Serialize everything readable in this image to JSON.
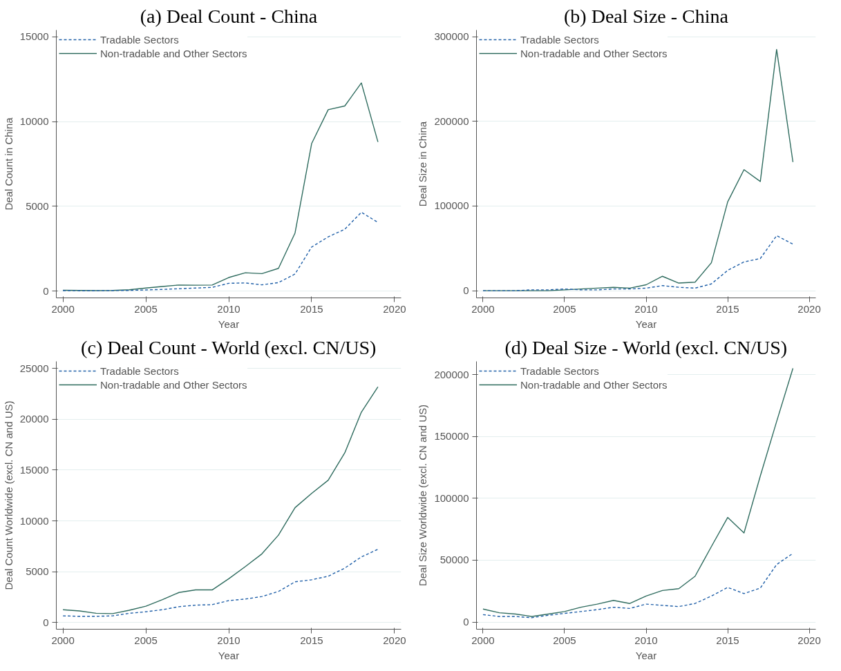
{
  "chart_data": [
    {
      "type": "line",
      "title": "(a) Deal Count - China",
      "xlabel": "Year",
      "ylabel": "Deal Count in China",
      "x": [
        2000,
        2001,
        2002,
        2003,
        2004,
        2005,
        2006,
        2007,
        2008,
        2009,
        2010,
        2011,
        2012,
        2013,
        2014,
        2015,
        2016,
        2017,
        2018,
        2019
      ],
      "xlim": [
        1999.6,
        2020.4
      ],
      "xticks": [
        2000,
        2005,
        2010,
        2015,
        2020
      ],
      "ylim": [
        -400,
        15400
      ],
      "yticks": [
        0,
        5000,
        10000,
        15000
      ],
      "grid": "y",
      "legend": "top left",
      "series": [
        {
          "name": "Tradable Sectors",
          "color": "#1f5fa8",
          "line_style": "dashed",
          "values": [
            30,
            20,
            20,
            30,
            40,
            70,
            100,
            140,
            180,
            220,
            460,
            480,
            370,
            500,
            1010,
            2600,
            3200,
            3650,
            4650,
            4050
          ]
        },
        {
          "name": "Non-tradable and Other Sectors",
          "color": "#2e6b5e",
          "line_style": "solid",
          "values": [
            50,
            40,
            30,
            40,
            80,
            180,
            270,
            360,
            350,
            360,
            800,
            1080,
            1030,
            1340,
            3430,
            8700,
            10700,
            10920,
            12280,
            8800
          ]
        }
      ]
    },
    {
      "type": "line",
      "title": "(b) Deal Size - China",
      "xlabel": "Year",
      "ylabel": "Deal Size in China",
      "x": [
        2000,
        2001,
        2002,
        2003,
        2004,
        2005,
        2006,
        2007,
        2008,
        2009,
        2010,
        2011,
        2012,
        2013,
        2014,
        2015,
        2016,
        2017,
        2018,
        2019
      ],
      "xlim": [
        1999.6,
        2020.4
      ],
      "xticks": [
        2000,
        2005,
        2010,
        2015,
        2020
      ],
      "ylim": [
        -8500,
        308000
      ],
      "yticks": [
        0,
        100000,
        200000,
        300000
      ],
      "grid": "y",
      "legend": "top left",
      "series": [
        {
          "name": "Tradable Sectors",
          "color": "#1f5fa8",
          "line_style": "dashed",
          "values": [
            0,
            0,
            0,
            1000,
            1000,
            2000,
            1000,
            1000,
            2000,
            2000,
            3000,
            6000,
            4000,
            3000,
            8000,
            24000,
            34000,
            38000,
            65000,
            55000
          ]
        },
        {
          "name": "Non-tradable and Other Sectors",
          "color": "#2e6b5e",
          "line_style": "solid",
          "values": [
            0,
            0,
            0,
            0,
            0,
            1000,
            2000,
            3000,
            4000,
            3000,
            7000,
            17000,
            9000,
            10000,
            33000,
            105000,
            143000,
            129000,
            285000,
            152000
          ]
        }
      ]
    },
    {
      "type": "line",
      "title": "(c) Deal Count - World (excl. CN/US)",
      "xlabel": "Year",
      "ylabel": "Deal Count Worldwide (excl. CN and US)",
      "x": [
        2000,
        2001,
        2002,
        2003,
        2004,
        2005,
        2006,
        2007,
        2008,
        2009,
        2010,
        2011,
        2012,
        2013,
        2014,
        2015,
        2016,
        2017,
        2018,
        2019
      ],
      "xlim": [
        1999.6,
        2020.4
      ],
      "xticks": [
        2000,
        2005,
        2010,
        2015,
        2020
      ],
      "ylim": [
        -670,
        25700
      ],
      "yticks": [
        0,
        5000,
        10000,
        15000,
        20000,
        25000
      ],
      "grid": "y",
      "legend": "top left",
      "series": [
        {
          "name": "Tradable Sectors",
          "color": "#1f5fa8",
          "line_style": "dashed",
          "values": [
            650,
            600,
            600,
            650,
            900,
            1050,
            1250,
            1550,
            1700,
            1750,
            2150,
            2300,
            2550,
            3050,
            4000,
            4200,
            4550,
            5350,
            6450,
            7200
          ]
        },
        {
          "name": "Non-tradable and Other Sectors",
          "color": "#2e6b5e",
          "line_style": "solid",
          "values": [
            1250,
            1130,
            900,
            870,
            1200,
            1600,
            2250,
            2950,
            3200,
            3200,
            4300,
            5500,
            6750,
            8600,
            11300,
            12700,
            14000,
            16700,
            20700,
            23200
          ]
        }
      ]
    },
    {
      "type": "line",
      "title": "(d) Deal Size - World (excl. CN/US)",
      "xlabel": "Year",
      "ylabel": "Deal Size Worldwide (excl. CN and US)",
      "x": [
        2000,
        2001,
        2002,
        2003,
        2004,
        2005,
        2006,
        2007,
        2008,
        2009,
        2010,
        2011,
        2012,
        2013,
        2014,
        2015,
        2016,
        2017,
        2018,
        2019
      ],
      "xlim": [
        1999.6,
        2020.4
      ],
      "xticks": [
        2000,
        2005,
        2010,
        2015,
        2020
      ],
      "ylim": [
        -5800,
        210600
      ],
      "yticks": [
        0,
        50000,
        100000,
        150000,
        200000
      ],
      "grid": "y",
      "legend": "top left",
      "series": [
        {
          "name": "Tradable Sectors",
          "color": "#1f5fa8",
          "line_style": "dashed",
          "values": [
            6000,
            4500,
            4500,
            3500,
            5500,
            7000,
            8500,
            10000,
            12000,
            11000,
            14500,
            13500,
            12500,
            15000,
            21000,
            28000,
            23000,
            27500,
            46500,
            55500
          ]
        },
        {
          "name": "Non-tradable and Other Sectors",
          "color": "#2e6b5e",
          "line_style": "solid",
          "values": [
            10500,
            7500,
            6500,
            4500,
            6500,
            8500,
            12000,
            14500,
            17500,
            15000,
            21000,
            25500,
            27000,
            37000,
            61000,
            84500,
            72000,
            118000,
            162000,
            205000
          ]
        }
      ]
    }
  ]
}
